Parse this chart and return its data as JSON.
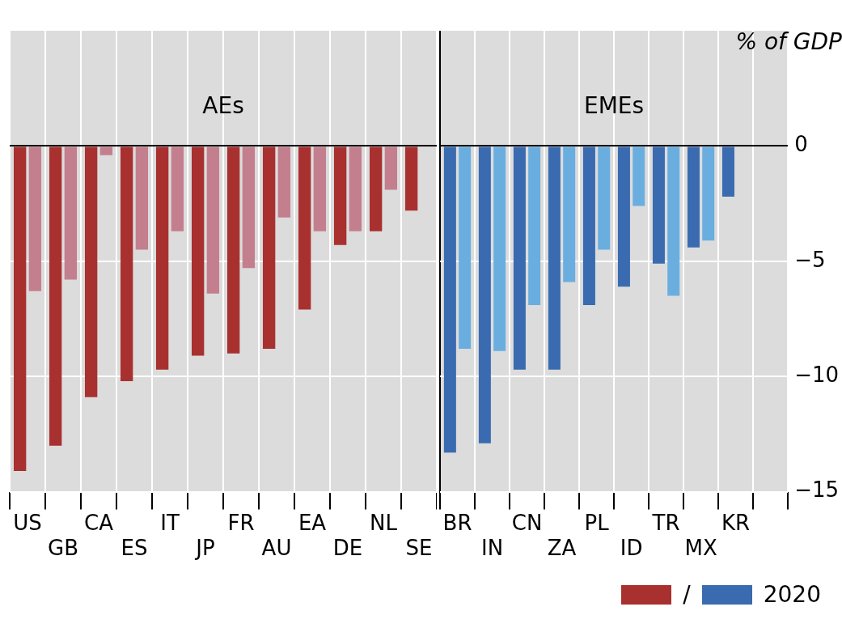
{
  "chart_data": [
    {
      "type": "bar",
      "title": "AEs",
      "categories": [
        "US",
        "GB",
        "CA",
        "ES",
        "IT",
        "JP",
        "FR",
        "AU",
        "EA",
        "DE",
        "NL",
        "SE"
      ],
      "series": [
        {
          "color": "#a8312f",
          "values": [
            -14.1,
            -13.0,
            -10.9,
            -10.2,
            -9.7,
            -9.1,
            -9.0,
            -8.8,
            -7.1,
            -4.3,
            -3.7,
            -2.8
          ]
        },
        {
          "color": "#c47f8e",
          "values": [
            -6.3,
            -5.8,
            -0.4,
            -4.5,
            -3.7,
            -6.4,
            -5.3,
            -3.1,
            -3.7,
            -3.7,
            -1.9,
            null
          ]
        }
      ],
      "ylim": [
        -15,
        5
      ],
      "yticks": [
        -15,
        -10,
        -5,
        0
      ],
      "grid": true,
      "tick_labels": "x"
    },
    {
      "type": "bar",
      "title": "EMEs",
      "ylabel": "% of GDP",
      "categories": [
        "BR",
        "IN",
        "CN",
        "ZA",
        "PL",
        "ID",
        "TR",
        "MX",
        "KR",
        null
      ],
      "series": [
        {
          "name": "2020",
          "color": "#3a6bb0",
          "values": [
            -13.3,
            -12.9,
            -9.7,
            -9.7,
            -6.9,
            -6.1,
            -5.1,
            -4.4,
            -2.2,
            null
          ]
        },
        {
          "color": "#6aaee0",
          "values": [
            -8.8,
            -8.9,
            -6.9,
            -5.9,
            -4.5,
            -2.6,
            -6.5,
            -4.1,
            null,
            null
          ]
        }
      ],
      "ylim": [
        -15,
        5
      ],
      "yticks": [
        -15,
        -10,
        -5,
        0
      ],
      "grid": true,
      "legend": "bottom right",
      "annotations": [
        "/"
      ]
    }
  ]
}
